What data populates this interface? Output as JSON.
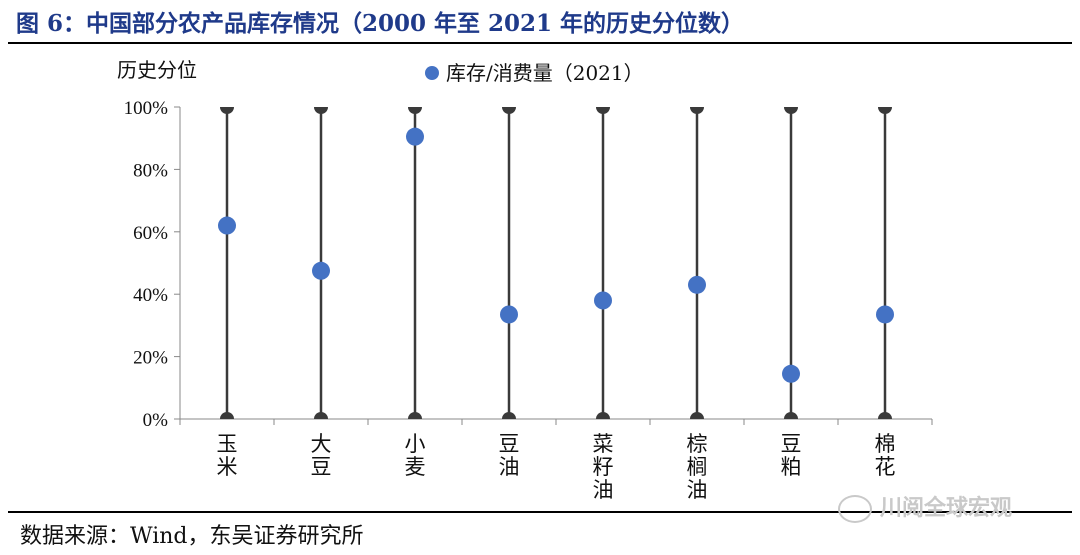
{
  "header": {
    "title": "图 6：中国部分农产品库存情况（2000 年至 2021 年的历史分位数）"
  },
  "footer": {
    "source": "数据来源：Wind，东吴证券研究所",
    "watermark": "川阅全球宏观"
  },
  "chart_data": {
    "type": "scatter",
    "title": "",
    "ylabel": "历史分位",
    "ylim": [
      0,
      1
    ],
    "yticks": [
      "0%",
      "20%",
      "40%",
      "60%",
      "80%",
      "100%"
    ],
    "categories": [
      [
        "玉",
        "米"
      ],
      [
        "大",
        "豆"
      ],
      [
        "小",
        "麦"
      ],
      [
        "豆",
        "油"
      ],
      [
        "菜",
        "籽",
        "油"
      ],
      [
        "棕",
        "榈",
        "油"
      ],
      [
        "豆",
        "粕"
      ],
      [
        "棉",
        "花"
      ]
    ],
    "series": [
      {
        "name": "库存/消费量（2021）",
        "values": [
          0.62,
          0.475,
          0.905,
          0.335,
          0.38,
          0.43,
          0.145,
          0.335
        ]
      }
    ],
    "range": {
      "min": 0,
      "max": 1
    },
    "legend": "top-center",
    "grid": false,
    "colors": {
      "point": "#4472c4",
      "range": "#3a3a3a"
    }
  }
}
